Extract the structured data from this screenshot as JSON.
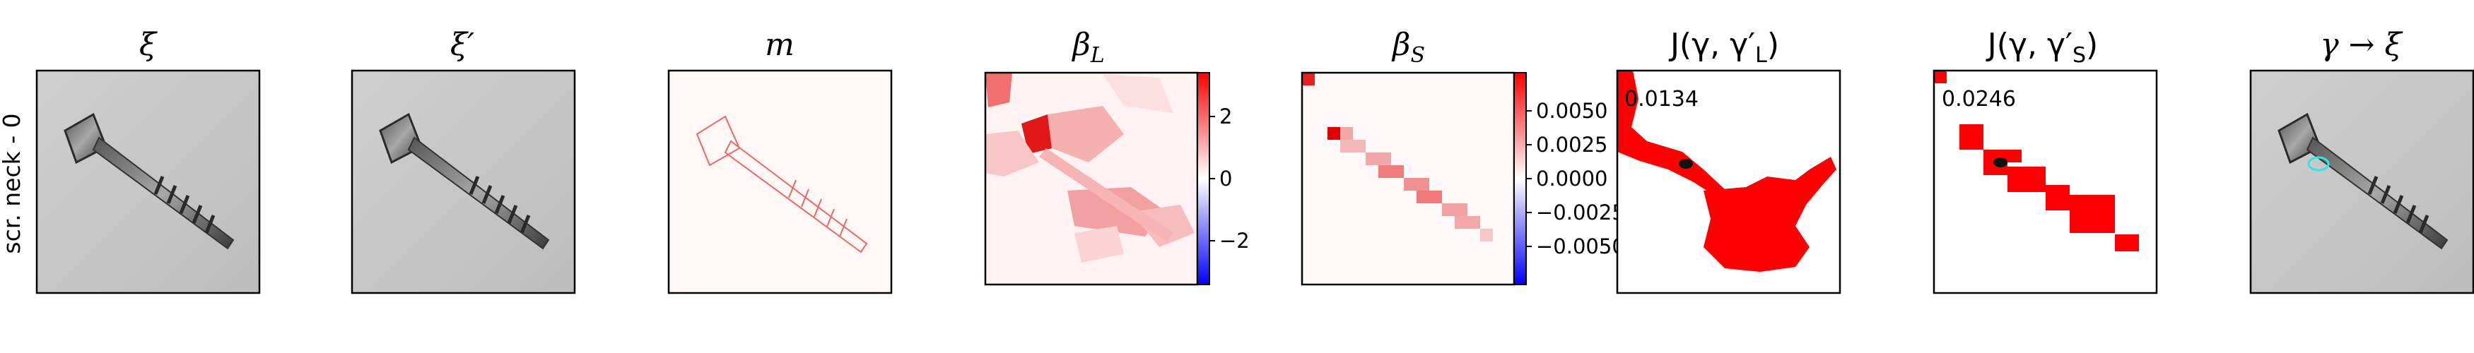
{
  "row_label": "scr. neck - 0",
  "panels": [
    {
      "title": "ξ"
    },
    {
      "title": "ξ′"
    },
    {
      "title": "m"
    },
    {
      "title": "β",
      "title_sub": "L",
      "colorbar_ticks": [
        "2",
        "0",
        "−2"
      ]
    },
    {
      "title": "β",
      "title_sub": "S",
      "colorbar_ticks": [
        "0.0050",
        "0.0025",
        "0.0000",
        "−0.0025",
        "−0.0050"
      ]
    },
    {
      "title": "J(γ, γ′",
      "title_sub": "L",
      "title_end": ")",
      "score": "0.0134"
    },
    {
      "title": "J(γ, γ′",
      "title_sub": "S",
      "title_end": ")",
      "score": "0.0246"
    },
    {
      "title": "γ → ξ"
    }
  ],
  "colors": {
    "red": "#ff0000",
    "blue": "#0000ff",
    "gray_bg": "#c7c7c7",
    "cyan": "#2ee6e6"
  }
}
